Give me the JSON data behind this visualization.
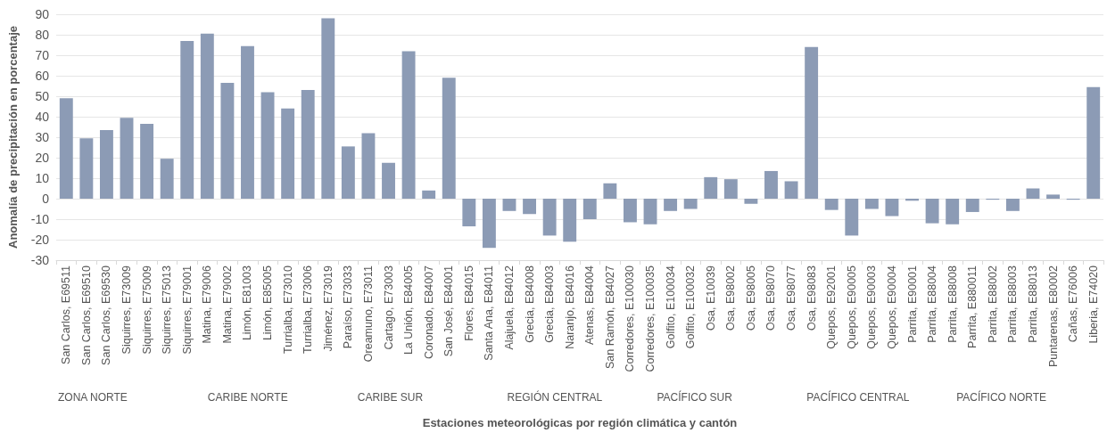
{
  "chart_data": {
    "type": "bar",
    "xlabel": "Estaciones meteorológicas por región climática y cantón",
    "ylabel": "Anomalía de precipitación en porcentaje",
    "categories": [
      "San Carlos, E69511",
      "San Carlos, E69510",
      "San Carlos, E69530",
      "Siquirres, E73009",
      "Siquirres, E75009",
      "Siquirres, E75013",
      "Siquirres, E79001",
      "Matina, E79006",
      "Matina, E79002",
      "Limón, E81003",
      "Limón, E85005",
      "Turrialba, E73010",
      "Turrialba, E73006",
      "Jiménez, E73019",
      "Paraíso, E73033",
      "Oreamuno, E73011",
      "Cartago, E73003",
      "La Unión, E84005",
      "Coronado, E84007",
      "San José, E84001",
      "Flores, E84015",
      "Santa Ana, E84011",
      "Alajuela, E84012",
      "Grecia, E84008",
      "Grecia, E84003",
      "Naranjo, E84016",
      "Atenas, E84004",
      "San Ramón, E84027",
      "Corredores, E100030",
      "Corredores, E100035",
      "Golfito, E100034",
      "Golfito, E100032",
      "Osa, E10039",
      "Osa, E98002",
      "Osa, E98005",
      "Osa, E98070",
      "Osa, E98077",
      "Osa, E98083",
      "Quepos, E92001",
      "Quepos, E90005",
      "Quepos, E90003",
      "Quepos, E90004",
      "Parrita, E90001",
      "Parrita, E88004",
      "Parrita, E88008",
      "Parrita, E880011",
      "Parrita, E88002",
      "Parrita, E88003",
      "Parrita, E88013",
      "Puntarenas, E80002",
      "Cañas, E76006",
      "Liberia, E74020"
    ],
    "values": [
      49,
      29.5,
      33.5,
      39.5,
      36.5,
      19.5,
      77,
      80.5,
      56.5,
      74.5,
      52,
      44,
      53,
      88,
      25.5,
      32,
      17.5,
      72,
      4,
      59,
      -13.5,
      -24,
      -6,
      -7.5,
      -18,
      -21,
      -10,
      7.5,
      -11.5,
      -12.5,
      -6,
      -5,
      10.5,
      9.5,
      -2.5,
      13.5,
      8.5,
      74,
      -5.5,
      -18,
      -5,
      -8.5,
      -1,
      -12,
      -12.5,
      -6.5,
      -0.5,
      -6,
      5,
      2,
      -0.5,
      54.5
    ],
    "color": "#8c9bb5",
    "ylim": [
      -30,
      90
    ],
    "yticks": [
      -30,
      -20,
      -10,
      0,
      10,
      20,
      30,
      40,
      50,
      60,
      70,
      80,
      90
    ],
    "grid": "y",
    "annotations": [
      "ZONA NORTE",
      "CARIBE NORTE",
      "CARIBE SUR",
      "REGIÓN CENTRAL",
      "PACÍFICO SUR",
      "PACÍFICO CENTRAL",
      "PACÍFICO NORTE"
    ]
  }
}
